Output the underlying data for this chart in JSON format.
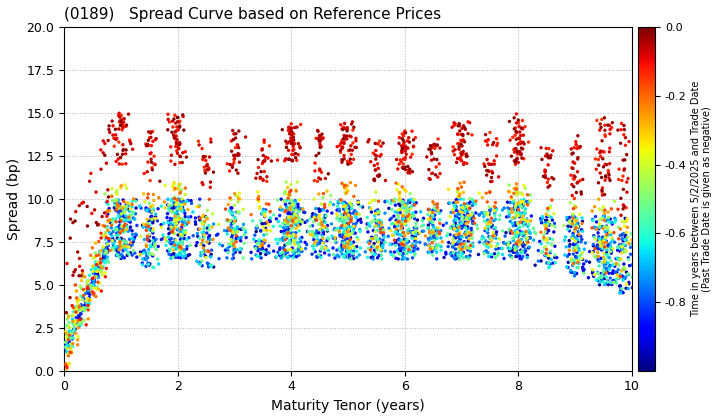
{
  "title": "(0189)   Spread Curve based on Reference Prices",
  "xlabel": "Maturity Tenor (years)",
  "ylabel": "Spread (bp)",
  "colorbar_label": "Time in years between 5/2/2025 and Trade Date\n(Past Trade Date is given as negative)",
  "xlim": [
    0,
    10
  ],
  "ylim": [
    0.0,
    20.0
  ],
  "yticks": [
    0.0,
    2.5,
    5.0,
    7.5,
    10.0,
    12.5,
    15.0,
    17.5,
    20.0
  ],
  "xticks": [
    0,
    2,
    4,
    6,
    8,
    10
  ],
  "cmap": "jet",
  "vmin": -1.0,
  "vmax": 0.0,
  "colorbar_ticks": [
    0.0,
    -0.2,
    -0.4,
    -0.6,
    -0.8
  ],
  "background_color": "#ffffff",
  "dot_size": 6,
  "seed": 42
}
